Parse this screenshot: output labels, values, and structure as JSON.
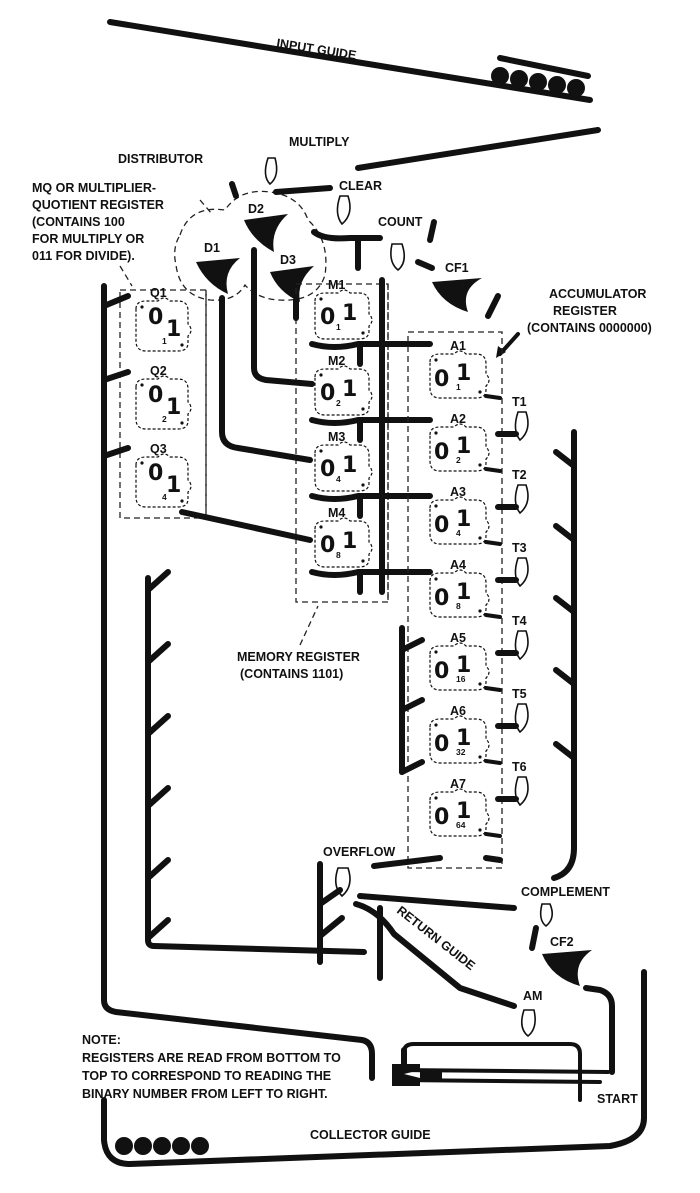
{
  "labels": {
    "input_guide": "INPUT GUIDE",
    "multiply": "MULTIPLY",
    "distributor": "DISTRIBUTOR",
    "clear": "CLEAR",
    "count": "COUNT",
    "cf1": "CF1",
    "d1": "D1",
    "d2": "D2",
    "d3": "D3",
    "mq_line1": "MQ OR MULTIPLIER-",
    "mq_line2": "QUOTIENT REGISTER",
    "mq_line3": "(CONTAINS 100",
    "mq_line4": "FOR MULTIPLY OR",
    "mq_line5": "011 FOR DIVIDE).",
    "acc_line1": "ACCUMULATOR",
    "acc_line2": "REGISTER",
    "acc_line3": "(CONTAINS 0000000)",
    "mem_line1": "MEMORY REGISTER",
    "mem_line2": "(CONTAINS 1101)",
    "overflow": "OVERFLOW",
    "complement": "COMPLEMENT",
    "cf2": "CF2",
    "return_guide": "RETURN GUIDE",
    "am": "AM",
    "start": "START",
    "collector_guide": "COLLECTOR GUIDE",
    "note_title": "NOTE:",
    "note_line1": "REGISTERS ARE READ FROM BOTTOM TO",
    "note_line2": "TOP TO CORRESPOND TO READING THE",
    "note_line3": "BINARY NUMBER FROM LEFT TO RIGHT."
  },
  "mq_bits": [
    {
      "name": "Q1",
      "one": "1",
      "zero": "0",
      "weight": "1"
    },
    {
      "name": "Q2",
      "one": "1",
      "zero": "0",
      "weight": "2"
    },
    {
      "name": "Q3",
      "one": "1",
      "zero": "0",
      "weight": "4"
    }
  ],
  "memory_bits": [
    {
      "name": "M1",
      "one": "1",
      "zero": "0",
      "weight": "1"
    },
    {
      "name": "M2",
      "one": "1",
      "zero": "0",
      "weight": "2"
    },
    {
      "name": "M3",
      "one": "1",
      "zero": "0",
      "weight": "4"
    },
    {
      "name": "M4",
      "one": "1",
      "zero": "0",
      "weight": "8"
    }
  ],
  "accumulator_bits": [
    {
      "name": "A1",
      "one": "1",
      "zero": "0",
      "weight": "1"
    },
    {
      "name": "A2",
      "one": "1",
      "zero": "0",
      "weight": "2"
    },
    {
      "name": "A3",
      "one": "1",
      "zero": "0",
      "weight": "4"
    },
    {
      "name": "A4",
      "one": "1",
      "zero": "0",
      "weight": "8"
    },
    {
      "name": "A5",
      "one": "1",
      "zero": "0",
      "weight": "16"
    },
    {
      "name": "A6",
      "one": "1",
      "zero": "0",
      "weight": "32"
    },
    {
      "name": "A7",
      "one": "1",
      "zero": "0",
      "weight": "64"
    }
  ],
  "toggles": [
    "T1",
    "T2",
    "T3",
    "T4",
    "T5",
    "T6"
  ],
  "colors": {
    "ink": "#111111",
    "paper": "#ffffff"
  }
}
